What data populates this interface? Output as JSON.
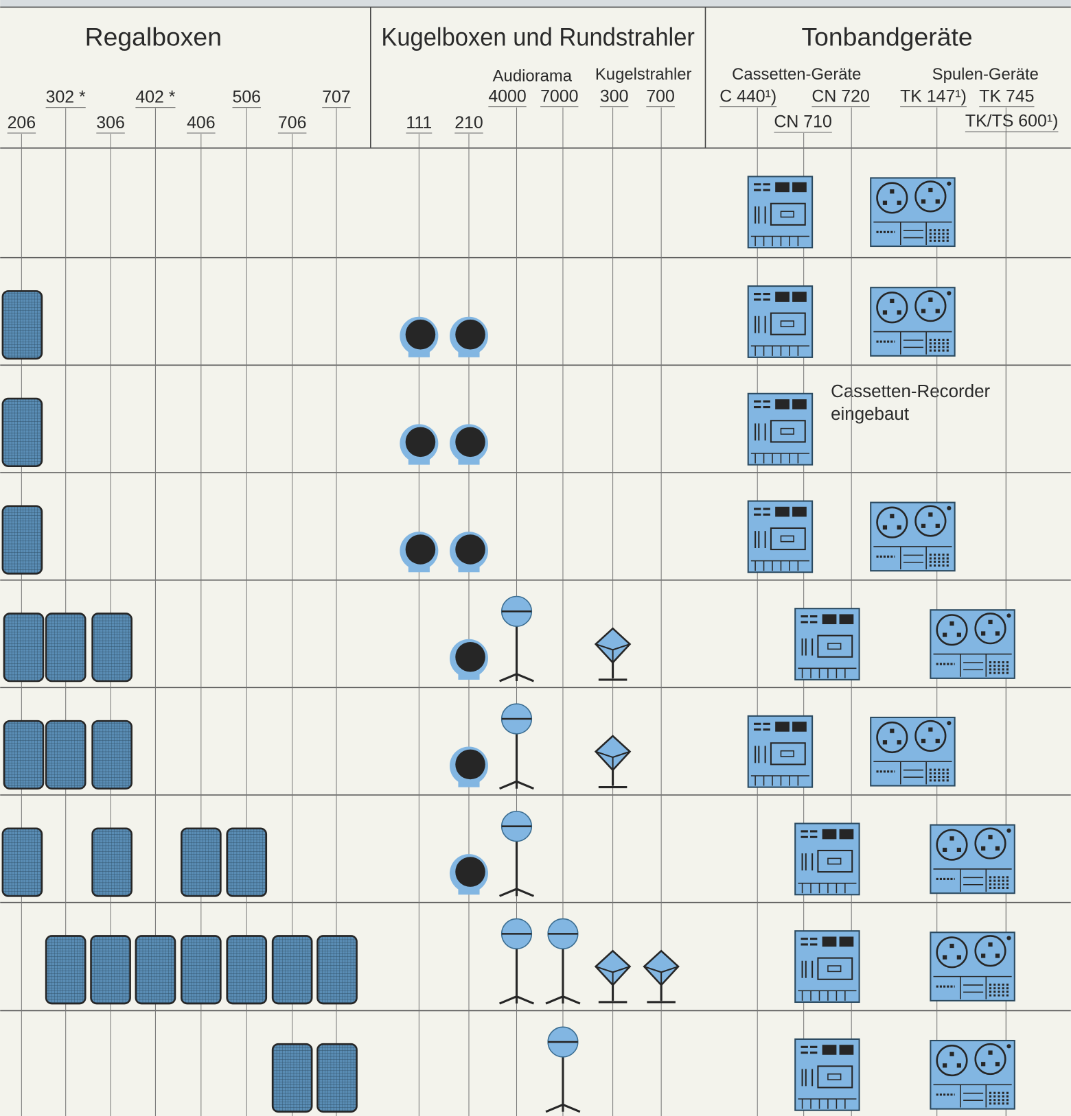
{
  "header": {
    "groups": [
      "Regalboxen",
      "Kugelboxen und Rundstrahler",
      "Tonbandgeräte"
    ],
    "subgroups": [
      "Audiorama",
      "Kugelstrahler",
      "Cassetten-Geräte",
      "Spulen-Geräte"
    ],
    "columns": [
      "206",
      "302 *",
      "306",
      "402 *",
      "406",
      "506",
      "706",
      "707",
      "111",
      "210",
      "4000",
      "7000",
      "300",
      "700",
      "C 440¹)",
      "CN 720",
      "CN 710",
      "TK 147¹)",
      "TK 745",
      "TK/TS 600¹)"
    ]
  },
  "note": [
    "Cassetten-Recorder",
    "eingebaut"
  ]
}
